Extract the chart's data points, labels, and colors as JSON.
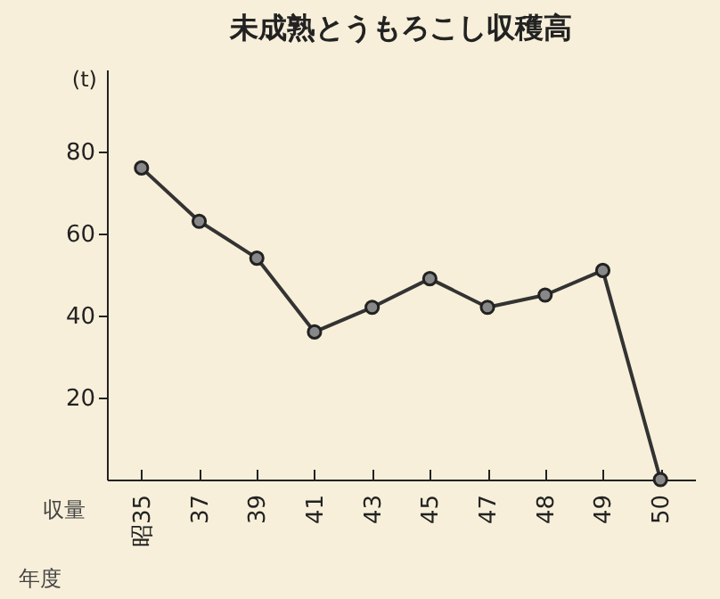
{
  "chart_data": {
    "type": "line",
    "title": "未成熟とうもろこし収穫高",
    "xlabel": "年度",
    "ylabel": "(t)",
    "annotations": [
      "収量"
    ],
    "categories": [
      "昭35",
      "37",
      "39",
      "41",
      "43",
      "45",
      "47",
      "48",
      "49",
      "50"
    ],
    "series": [
      {
        "color": "#333333",
        "values": [
          76,
          63,
          54,
          36,
          42,
          49,
          42,
          45,
          51,
          0
        ]
      }
    ],
    "ylim": [
      0,
      100
    ],
    "yticks": [
      20,
      40,
      60,
      80
    ],
    "marker": "circle",
    "line_style": "solid",
    "grid": false,
    "legend": false
  }
}
